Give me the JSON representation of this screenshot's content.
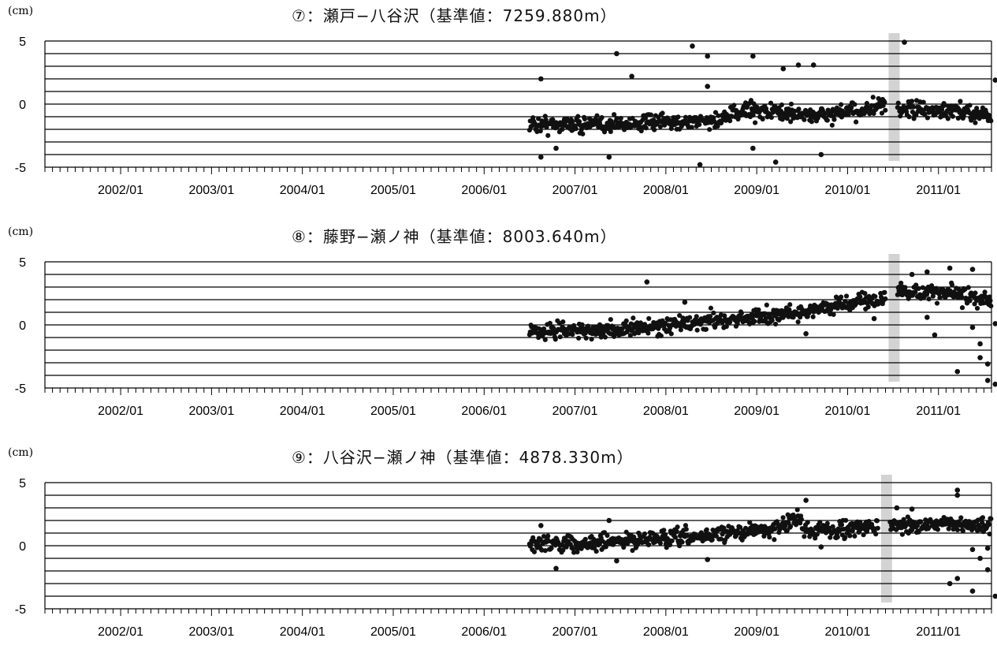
{
  "unit_label": "(cm)",
  "colors": {
    "points": "#111111",
    "grid": "#000000",
    "gap_band": "#d3d3d3"
  },
  "chart_data": [
    {
      "type": "scatter",
      "title": "⑦：瀬戸−八谷沢（基準値：7259.880m）",
      "ylabel": "(cm)",
      "ylim": [
        -5,
        5
      ],
      "yticks": [
        "5",
        "0",
        "-5"
      ],
      "xticks": [
        "2002/01",
        "2003/01",
        "2004/01",
        "2005/01",
        "2006/01",
        "2007/01",
        "2008/01",
        "2009/01",
        "2010/01",
        "2011/01"
      ],
      "xlim": [
        "2001/03",
        "2011/08"
      ],
      "grid": true,
      "data_gap": [
        "2010/06",
        "2010/07"
      ],
      "trend": [
        [
          "2006/07",
          -1.6
        ],
        [
          "2007/06",
          -1.6
        ],
        [
          "2008/08",
          -1.3
        ],
        [
          "2008/12",
          -0.4
        ],
        [
          "2009/06",
          -0.8
        ],
        [
          "2009/10",
          -0.9
        ],
        [
          "2010/06",
          -0.2
        ],
        [
          "2010/08",
          -0.4
        ],
        [
          "2011/08",
          -0.8
        ]
      ],
      "outliers": [
        [
          "2006/08",
          2.0
        ],
        [
          "2006/08",
          -4.2
        ],
        [
          "2006/10",
          -3.5
        ],
        [
          "2007/06",
          4.0
        ],
        [
          "2007/08",
          2.2
        ],
        [
          "2007/05",
          -4.2
        ],
        [
          "2008/04",
          4.6
        ],
        [
          "2008/06",
          1.4
        ],
        [
          "2008/06",
          3.8
        ],
        [
          "2008/05",
          -4.8
        ],
        [
          "2008/12",
          3.8
        ],
        [
          "2008/12",
          -3.5
        ],
        [
          "2009/03",
          -4.6
        ],
        [
          "2009/04",
          2.8
        ],
        [
          "2009/06",
          3.1
        ],
        [
          "2009/08",
          3.1
        ],
        [
          "2009/09",
          -4.0
        ],
        [
          "2010/08",
          4.9
        ],
        [
          "2011/08",
          1.9
        ]
      ]
    },
    {
      "type": "scatter",
      "title": "⑧：藤野−瀬ノ神（基準値：8003.640m）",
      "ylabel": "(cm)",
      "ylim": [
        -5,
        5
      ],
      "yticks": [
        "5",
        "0",
        "-5"
      ],
      "xticks": [
        "2002/01",
        "2003/01",
        "2004/01",
        "2005/01",
        "2006/01",
        "2007/01",
        "2008/01",
        "2009/01",
        "2010/01",
        "2011/01"
      ],
      "xlim": [
        "2001/03",
        "2011/08"
      ],
      "grid": true,
      "data_gap": [
        "2010/06",
        "2010/07"
      ],
      "trend": [
        [
          "2006/07",
          -0.5
        ],
        [
          "2007/07",
          -0.4
        ],
        [
          "2008/07",
          0.3
        ],
        [
          "2009/07",
          1.0
        ],
        [
          "2010/01",
          1.7
        ],
        [
          "2010/06",
          2.2
        ],
        [
          "2010/08",
          2.6
        ],
        [
          "2011/03",
          2.5
        ],
        [
          "2011/08",
          1.8
        ]
      ],
      "outliers": [
        [
          "2007/10",
          3.4
        ],
        [
          "2008/03",
          1.8
        ],
        [
          "2009/07",
          -0.7
        ],
        [
          "2010/04",
          0.5
        ],
        [
          "2010/09",
          4.0
        ],
        [
          "2010/11",
          4.2
        ],
        [
          "2011/02",
          4.5
        ],
        [
          "2011/05",
          4.4
        ],
        [
          "2010/11",
          0.6
        ],
        [
          "2010/12",
          -0.8
        ],
        [
          "2011/03",
          -3.7
        ],
        [
          "2011/05",
          -0.2
        ],
        [
          "2011/06",
          -1.5
        ],
        [
          "2011/06",
          -2.6
        ],
        [
          "2011/07",
          -3.1
        ],
        [
          "2011/07",
          -4.4
        ],
        [
          "2011/08",
          -4.7
        ],
        [
          "2011/08",
          0.1
        ]
      ]
    },
    {
      "type": "scatter",
      "title": "⑨：八谷沢−瀬ノ神（基準値：4878.330m）",
      "ylabel": "(cm)",
      "ylim": [
        -5,
        5
      ],
      "yticks": [
        "5",
        "0",
        "-5"
      ],
      "xticks": [
        "2002/01",
        "2003/01",
        "2004/01",
        "2005/01",
        "2006/01",
        "2007/01",
        "2008/01",
        "2009/01",
        "2010/01",
        "2011/01"
      ],
      "xlim": [
        "2001/03",
        "2011/08"
      ],
      "grid": true,
      "data_gap": [
        "2010/05",
        "2010/06"
      ],
      "trend": [
        [
          "2006/07",
          0.2
        ],
        [
          "2007/04",
          0.2
        ],
        [
          "2007/10",
          0.5
        ],
        [
          "2008/04",
          0.6
        ],
        [
          "2008/10",
          1.1
        ],
        [
          "2009/03",
          1.2
        ],
        [
          "2009/06",
          2.2
        ],
        [
          "2009/08",
          1.2
        ],
        [
          "2010/05",
          1.5
        ],
        [
          "2010/07",
          1.7
        ],
        [
          "2011/08",
          1.6
        ]
      ],
      "outliers": [
        [
          "2006/08",
          1.6
        ],
        [
          "2006/10",
          -1.8
        ],
        [
          "2007/05",
          2.0
        ],
        [
          "2007/06",
          -1.2
        ],
        [
          "2008/06",
          -1.1
        ],
        [
          "2009/07",
          3.6
        ],
        [
          "2009/09",
          -0.1
        ],
        [
          "2010/07",
          3.0
        ],
        [
          "2010/09",
          2.9
        ],
        [
          "2011/03",
          4.4
        ],
        [
          "2011/03",
          4.0
        ],
        [
          "2011/02",
          -3.0
        ],
        [
          "2011/03",
          -2.6
        ],
        [
          "2011/05",
          -0.3
        ],
        [
          "2011/05",
          -3.6
        ],
        [
          "2011/06",
          -1.0
        ],
        [
          "2011/07",
          -0.2
        ],
        [
          "2011/07",
          -1.9
        ],
        [
          "2011/08",
          -4.0
        ]
      ]
    }
  ]
}
